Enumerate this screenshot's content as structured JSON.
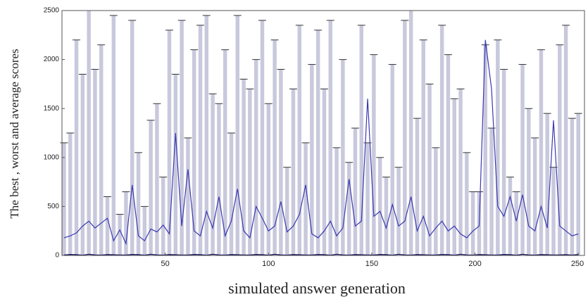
{
  "chart_data": {
    "type": "line",
    "ylabel": "The best , worst and average scores",
    "xlabel": "simulated answer generation",
    "x": [
      1,
      4,
      7,
      10,
      13,
      16,
      19,
      22,
      25,
      28,
      31,
      34,
      37,
      40,
      43,
      46,
      49,
      52,
      55,
      58,
      61,
      64,
      67,
      70,
      73,
      76,
      79,
      82,
      85,
      88,
      91,
      94,
      97,
      100,
      103,
      106,
      109,
      112,
      115,
      118,
      121,
      124,
      127,
      130,
      133,
      136,
      139,
      142,
      145,
      148,
      151,
      154,
      157,
      160,
      163,
      166,
      169,
      172,
      175,
      178,
      181,
      184,
      187,
      190,
      193,
      196,
      199,
      202,
      205,
      208,
      211,
      214,
      217,
      220,
      223,
      226,
      229,
      232,
      235,
      238,
      241,
      244,
      247,
      250
    ],
    "series": [
      {
        "type": "bar",
        "color": "#c9c9dd",
        "values": [
          1150,
          1250,
          2200,
          1850,
          2500,
          1900,
          2150,
          600,
          2450,
          420,
          650,
          2400,
          1050,
          500,
          1380,
          1550,
          800,
          2300,
          1850,
          2400,
          1200,
          2100,
          2350,
          2450,
          1650,
          1550,
          2100,
          1250,
          2450,
          1800,
          1700,
          2000,
          2400,
          1550,
          2200,
          1900,
          900,
          1700,
          2350,
          1150,
          1950,
          2300,
          1700,
          2400,
          1100,
          2000,
          950,
          1300,
          2350,
          1150,
          2050,
          1000,
          800,
          1950,
          900,
          2400,
          2500,
          1400,
          2200,
          1750,
          1100,
          2350,
          2050,
          1600,
          1700,
          1050,
          650,
          650,
          2150,
          1300,
          2200,
          1900,
          800,
          650,
          1950,
          1500,
          1200,
          2100,
          1450,
          900,
          2150,
          2350,
          1400,
          1450
        ]
      },
      {
        "type": "line",
        "color": "#3a3ab0",
        "values": [
          180,
          200,
          230,
          300,
          350,
          280,
          330,
          380,
          150,
          260,
          120,
          720,
          200,
          150,
          270,
          240,
          310,
          220,
          1250,
          300,
          880,
          250,
          200,
          450,
          280,
          600,
          200,
          350,
          680,
          250,
          180,
          500,
          380,
          250,
          300,
          550,
          240,
          300,
          420,
          720,
          220,
          180,
          250,
          350,
          200,
          280,
          780,
          300,
          350,
          1600,
          400,
          450,
          280,
          520,
          300,
          350,
          600,
          250,
          400,
          200,
          280,
          350,
          250,
          300,
          220,
          180,
          250,
          300,
          2200,
          1700,
          500,
          400,
          600,
          350,
          620,
          300,
          250,
          500,
          280,
          1380,
          300,
          250,
          200,
          220
        ]
      },
      {
        "type": "line",
        "color": "#10105a",
        "values": [
          5,
          10,
          8,
          3,
          12,
          6,
          4,
          9,
          7,
          5,
          5,
          10,
          8,
          3,
          12,
          6,
          4,
          9,
          7,
          5,
          5,
          10,
          8,
          3,
          12,
          6,
          4,
          9,
          7,
          5,
          5,
          10,
          8,
          3,
          12,
          6,
          4,
          9,
          7,
          5,
          5,
          10,
          8,
          3,
          12,
          6,
          4,
          9,
          7,
          5,
          5,
          10,
          8,
          3,
          12,
          6,
          4,
          9,
          7,
          5,
          5,
          10,
          8,
          3,
          12,
          6,
          4,
          9,
          7,
          5,
          5,
          10,
          8,
          3,
          12,
          6,
          4,
          9,
          7,
          5,
          6,
          8,
          4,
          10
        ]
      }
    ],
    "xlim": [
      0,
      253
    ],
    "ylim": [
      0,
      2500
    ],
    "xticks": [
      50,
      100,
      150,
      200,
      250
    ],
    "yticks": [
      0,
      500,
      1000,
      1500,
      2000,
      2500
    ]
  }
}
